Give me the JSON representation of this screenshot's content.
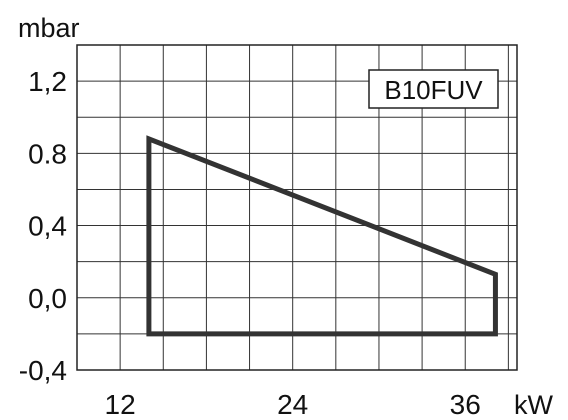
{
  "chart_data": {
    "type": "area",
    "title": "",
    "legend_box": "B10FUV",
    "xlabel": "kW",
    "ylabel": "mbar",
    "xlim": [
      9,
      39.6
    ],
    "ylim": [
      -0.4,
      1.4
    ],
    "x_ticks": [
      {
        "value": 12,
        "label": "12"
      },
      {
        "value": 24,
        "label": "24"
      },
      {
        "value": 36,
        "label": "36"
      }
    ],
    "y_ticks": [
      {
        "value": 1.2,
        "label": "1,2"
      },
      {
        "value": 0.8,
        "label": "0.8"
      },
      {
        "value": 0.4,
        "label": "0,4"
      },
      {
        "value": 0.0,
        "label": "0,0"
      },
      {
        "value": -0.4,
        "label": "-0,4"
      }
    ],
    "grid": true,
    "grid_x_step": 3,
    "grid_y_step": 0.2,
    "series": [
      {
        "points": [
          [
            14.0,
            -0.2
          ],
          [
            14.0,
            0.88
          ],
          [
            38.1,
            0.13
          ],
          [
            38.1,
            -0.2
          ]
        ],
        "closed": true,
        "color": "#333333"
      }
    ]
  }
}
